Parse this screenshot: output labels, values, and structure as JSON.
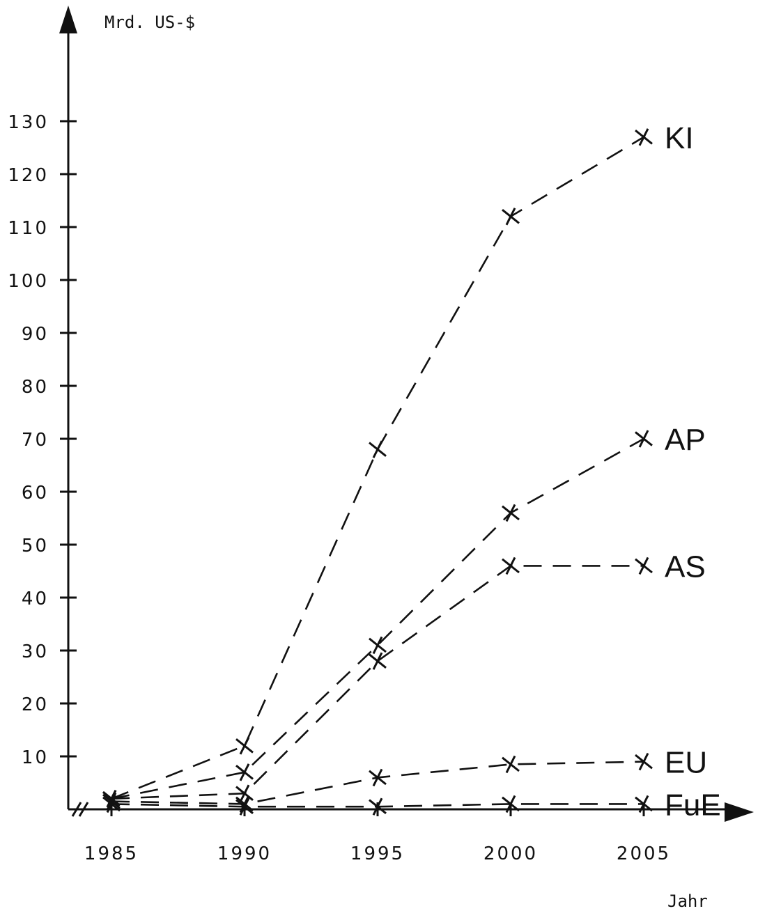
{
  "chart_data": {
    "type": "line",
    "title": "",
    "ylabel": "Mrd. US-$",
    "xlabel": "Jahr",
    "x": [
      1985,
      1990,
      1995,
      2000,
      2005
    ],
    "xticks": [
      "1985",
      "1990",
      "1995",
      "2000",
      "2005"
    ],
    "yticks": [
      10,
      20,
      30,
      40,
      50,
      60,
      70,
      80,
      90,
      100,
      110,
      120,
      130
    ],
    "ylim": [
      0,
      130
    ],
    "grid": false,
    "line_style": "dashed",
    "marker": "x",
    "series": [
      {
        "name": "KI",
        "values": [
          2,
          12,
          68,
          112,
          127
        ]
      },
      {
        "name": "AP",
        "values": [
          2,
          7,
          31,
          56,
          70
        ]
      },
      {
        "name": "AS",
        "values": [
          2,
          3,
          28,
          46,
          46
        ]
      },
      {
        "name": "EU",
        "values": [
          1.5,
          1,
          6,
          8.5,
          9
        ]
      },
      {
        "name": "FuE",
        "values": [
          1,
          0.5,
          0.5,
          1,
          1
        ]
      }
    ]
  }
}
